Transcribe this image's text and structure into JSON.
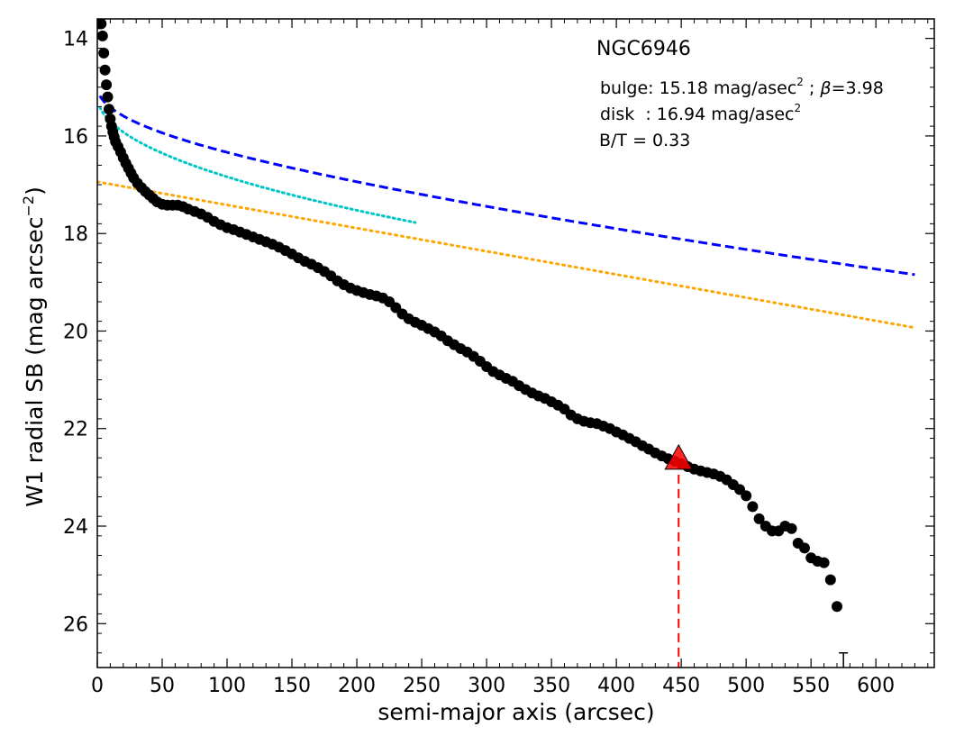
{
  "chart_data": {
    "type": "scatter",
    "title": "NGC6946",
    "xlabel": "semi-major axis (arcsec)",
    "ylabel": "W1 radial SB (mag arcsec",
    "ylabel_sup": "−2",
    "ylabel_close": ")",
    "xlim": [
      0,
      645
    ],
    "ylim": [
      26.9,
      13.6
    ],
    "y_inverted": true,
    "x_ticks": [
      0,
      50,
      100,
      150,
      200,
      250,
      300,
      350,
      400,
      450,
      500,
      550,
      600
    ],
    "y_ticks": [
      14,
      16,
      18,
      20,
      22,
      24,
      26
    ],
    "grid": false,
    "annotations": {
      "bulge_prefix": "bulge: 15.18 mag/asec",
      "bulge_sup": "2",
      "bulge_mid": " ; ",
      "bulge_beta": "β",
      "bulge_beta_val": "=3.98",
      "disk_prefix": "disk  : 16.94 mag/asec",
      "disk_sup": "2",
      "bt": "B/T = 0.33"
    },
    "colors": {
      "points": "#000000",
      "total_fit": "#0000ff",
      "bulge_fit": "#00c5c5",
      "disk_fit": "#ffa500",
      "marker": "#ff0000",
      "marker_line": "#ff0000"
    },
    "models": {
      "disk": {
        "mu0": 16.94,
        "h": 228.6,
        "x_range": [
          0,
          630
        ]
      },
      "bulge": {
        "mu0": 15.18,
        "r0": 42.9,
        "x_range": [
          2,
          245
        ]
      }
    },
    "marker": {
      "x": 448,
      "y": 22.65
    },
    "upper_limit": {
      "x": 575,
      "y": 26.6
    },
    "series": [
      {
        "points": [
          [
            3,
            13.7
          ],
          [
            4,
            13.95
          ],
          [
            5,
            14.3
          ],
          [
            6,
            14.65
          ],
          [
            7,
            14.95
          ],
          [
            8,
            15.2
          ],
          [
            9,
            15.45
          ],
          [
            10,
            15.65
          ],
          [
            11,
            15.8
          ],
          [
            12,
            15.92
          ],
          [
            13,
            16.02
          ],
          [
            14,
            16.12
          ],
          [
            16,
            16.22
          ],
          [
            18,
            16.33
          ],
          [
            20,
            16.45
          ],
          [
            22,
            16.56
          ],
          [
            24,
            16.66
          ],
          [
            26,
            16.76
          ],
          [
            28,
            16.86
          ],
          [
            31,
            16.97
          ],
          [
            34,
            17.06
          ],
          [
            37,
            17.14
          ],
          [
            40,
            17.21
          ],
          [
            43,
            17.28
          ],
          [
            46,
            17.35
          ],
          [
            50,
            17.4
          ],
          [
            54,
            17.42
          ],
          [
            58,
            17.42
          ],
          [
            62,
            17.42
          ],
          [
            66,
            17.45
          ],
          [
            70,
            17.5
          ],
          [
            75,
            17.55
          ],
          [
            80,
            17.6
          ],
          [
            85,
            17.67
          ],
          [
            90,
            17.75
          ],
          [
            95,
            17.82
          ],
          [
            100,
            17.88
          ],
          [
            105,
            17.92
          ],
          [
            110,
            17.97
          ],
          [
            115,
            18.02
          ],
          [
            120,
            18.07
          ],
          [
            125,
            18.12
          ],
          [
            130,
            18.17
          ],
          [
            135,
            18.22
          ],
          [
            140,
            18.28
          ],
          [
            145,
            18.35
          ],
          [
            150,
            18.42
          ],
          [
            155,
            18.5
          ],
          [
            160,
            18.57
          ],
          [
            165,
            18.63
          ],
          [
            170,
            18.7
          ],
          [
            175,
            18.78
          ],
          [
            180,
            18.87
          ],
          [
            185,
            18.97
          ],
          [
            190,
            19.05
          ],
          [
            195,
            19.12
          ],
          [
            200,
            19.17
          ],
          [
            205,
            19.21
          ],
          [
            210,
            19.25
          ],
          [
            215,
            19.28
          ],
          [
            220,
            19.32
          ],
          [
            225,
            19.4
          ],
          [
            230,
            19.52
          ],
          [
            235,
            19.65
          ],
          [
            240,
            19.75
          ],
          [
            245,
            19.82
          ],
          [
            250,
            19.88
          ],
          [
            255,
            19.95
          ],
          [
            260,
            20.02
          ],
          [
            265,
            20.1
          ],
          [
            270,
            20.2
          ],
          [
            275,
            20.28
          ],
          [
            280,
            20.36
          ],
          [
            285,
            20.43
          ],
          [
            290,
            20.52
          ],
          [
            295,
            20.62
          ],
          [
            300,
            20.73
          ],
          [
            305,
            20.83
          ],
          [
            310,
            20.9
          ],
          [
            315,
            20.97
          ],
          [
            320,
            21.03
          ],
          [
            325,
            21.12
          ],
          [
            330,
            21.2
          ],
          [
            335,
            21.27
          ],
          [
            340,
            21.33
          ],
          [
            345,
            21.38
          ],
          [
            350,
            21.45
          ],
          [
            355,
            21.52
          ],
          [
            360,
            21.6
          ],
          [
            365,
            21.72
          ],
          [
            370,
            21.8
          ],
          [
            375,
            21.85
          ],
          [
            380,
            21.88
          ],
          [
            385,
            21.9
          ],
          [
            390,
            21.95
          ],
          [
            395,
            22.0
          ],
          [
            400,
            22.07
          ],
          [
            405,
            22.13
          ],
          [
            410,
            22.2
          ],
          [
            415,
            22.27
          ],
          [
            420,
            22.35
          ],
          [
            425,
            22.42
          ],
          [
            430,
            22.5
          ],
          [
            435,
            22.56
          ],
          [
            440,
            22.62
          ],
          [
            445,
            22.67
          ],
          [
            450,
            22.72
          ],
          [
            455,
            22.78
          ],
          [
            460,
            22.83
          ],
          [
            465,
            22.87
          ],
          [
            470,
            22.9
          ],
          [
            475,
            22.93
          ],
          [
            480,
            22.98
          ],
          [
            485,
            23.05
          ],
          [
            490,
            23.15
          ],
          [
            495,
            23.25
          ],
          [
            500,
            23.38
          ],
          [
            505,
            23.6
          ],
          [
            510,
            23.85
          ],
          [
            515,
            24.0
          ],
          [
            520,
            24.1
          ],
          [
            525,
            24.1
          ],
          [
            530,
            24.0
          ],
          [
            535,
            24.05
          ],
          [
            540,
            24.35
          ],
          [
            545,
            24.45
          ],
          [
            550,
            24.65
          ],
          [
            555,
            24.72
          ],
          [
            560,
            24.75
          ],
          [
            565,
            25.1
          ],
          [
            570,
            25.65
          ]
        ]
      }
    ]
  }
}
